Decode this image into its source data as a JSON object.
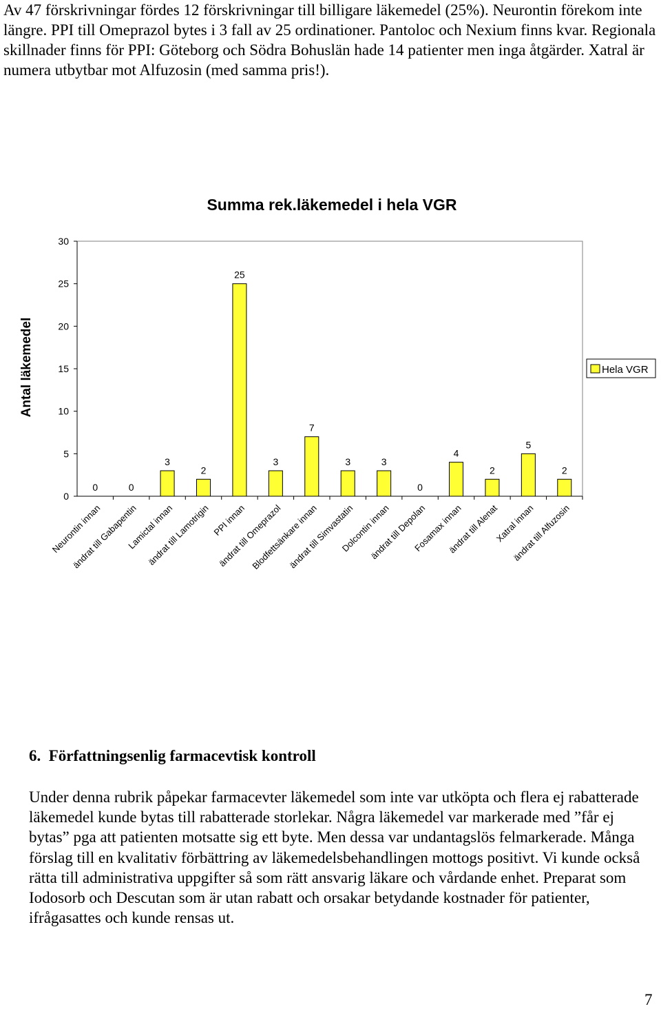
{
  "intro_paragraph": "Av 47 förskrivningar fördes 12 förskrivningar till billigare läkemedel (25%). Neurontin förekom inte längre. PPI till Omeprazol bytes i 3 fall av 25 ordinationer. Pantoloc och Nexium finns kvar. Regionala skillnader finns för PPI: Göteborg och Södra Bohuslän hade 14 patienter men inga åtgärder. Xatral är numera utbytbar mot Alfuzosin (med samma pris!).",
  "chart_data": {
    "type": "bar",
    "title": "Summa rek.läkemedel i hela VGR",
    "ylabel": "Antal läkemedel",
    "xlabel": "",
    "ylim": [
      0,
      30
    ],
    "yticks": [
      "0",
      "5",
      "10",
      "15",
      "20",
      "25",
      "30"
    ],
    "grid": false,
    "legend_position": "right",
    "bar_color": "#FFFF33",
    "categories": [
      "Neurontin innan",
      "ändrat till Gabapentin",
      "Lamictal innan",
      "ändrat till Lamotrigin",
      "PPI innan",
      "ändrat till Omeprazol",
      "Blodfettsänkare innan",
      "ändrat till Simvastatin",
      "Dolcontin innan",
      "ändrat till Depolan",
      "Fosamax innan",
      "ändrat till Alenat",
      "Xatral innan",
      "ändrat till Alfuzosin"
    ],
    "series": [
      {
        "name": "Hela VGR",
        "values": [
          0,
          0,
          3,
          2,
          25,
          3,
          7,
          3,
          3,
          0,
          4,
          2,
          5,
          2
        ]
      }
    ]
  },
  "section": {
    "number": "6.",
    "title": "Författningsenlig farmacevtisk kontroll"
  },
  "body_paragraph": "Under denna rubrik påpekar farmacevter läkemedel som inte var utköpta och flera ej rabatterade läkemedel kunde bytas till rabatterade storlekar. Några läkemedel var markerade med ”får ej bytas” pga att patienten motsatte sig ett byte. Men dessa var undantagslös felmarkerade. Många förslag till en kvalitativ förbättring av läkemedelsbehandlingen mottogs positivt. Vi kunde också rätta till administrativa uppgifter så som rätt ansvarig läkare och vårdande enhet. Preparat som Iodosorb och Descutan som är utan rabatt och orsakar betydande kostnader för patienter, ifrågasattes och kunde rensas ut.",
  "page_number": "7"
}
